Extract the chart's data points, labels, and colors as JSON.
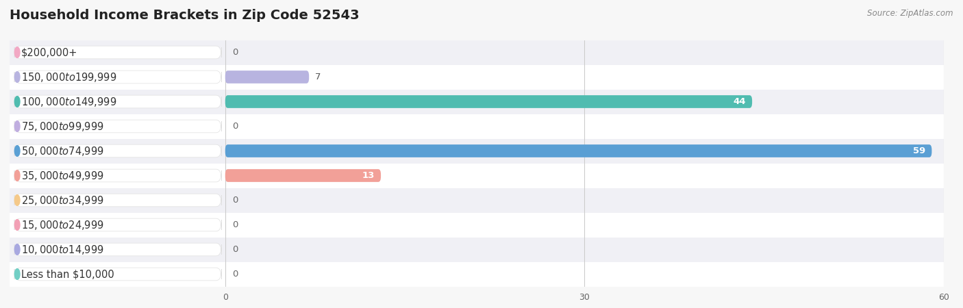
{
  "title": "Household Income Brackets in Zip Code 52543",
  "source": "Source: ZipAtlas.com",
  "categories": [
    "Less than $10,000",
    "$10,000 to $14,999",
    "$15,000 to $24,999",
    "$25,000 to $34,999",
    "$35,000 to $49,999",
    "$50,000 to $74,999",
    "$75,000 to $99,999",
    "$100,000 to $149,999",
    "$150,000 to $199,999",
    "$200,000+"
  ],
  "values": [
    0,
    0,
    0,
    0,
    13,
    59,
    0,
    44,
    7,
    0
  ],
  "bar_colors": [
    "#72cfc5",
    "#a8a8e0",
    "#f2a0b5",
    "#f5c98a",
    "#f2a098",
    "#5a9fd4",
    "#c0aee0",
    "#50bcb0",
    "#b8b4e0",
    "#f2a8c4"
  ],
  "background_color": "#f7f7f7",
  "row_even_color": "#ffffff",
  "row_odd_color": "#f0f0f5",
  "grid_color": "#cccccc",
  "xlim_min": 0,
  "xlim_max": 60,
  "xticks": [
    0,
    30,
    60
  ],
  "title_fontsize": 14,
  "label_fontsize": 10.5,
  "value_fontsize": 9.5,
  "bar_height": 0.52,
  "rounding_size": 0.22
}
